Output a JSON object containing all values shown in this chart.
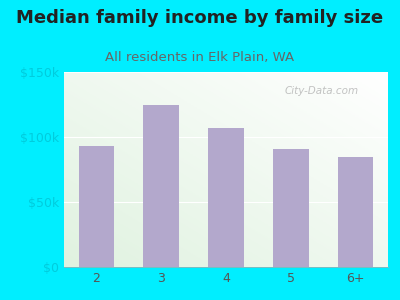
{
  "title": "Median family income by family size",
  "subtitle": "All residents in Elk Plain, WA",
  "categories": [
    "2",
    "3",
    "4",
    "5",
    "6+"
  ],
  "values": [
    93000,
    125000,
    107000,
    91000,
    85000
  ],
  "bar_color": "#b3a8cc",
  "ylim": [
    0,
    150000
  ],
  "yticks": [
    0,
    50000,
    100000,
    150000
  ],
  "ytick_labels": [
    "$0",
    "$50k",
    "$100k",
    "$150k"
  ],
  "background_outer": "#00eeff",
  "title_color": "#222222",
  "subtitle_color": "#666666",
  "title_fontsize": 13,
  "subtitle_fontsize": 9.5,
  "watermark": "City-Data.com",
  "tick_color": "#00ccdd"
}
